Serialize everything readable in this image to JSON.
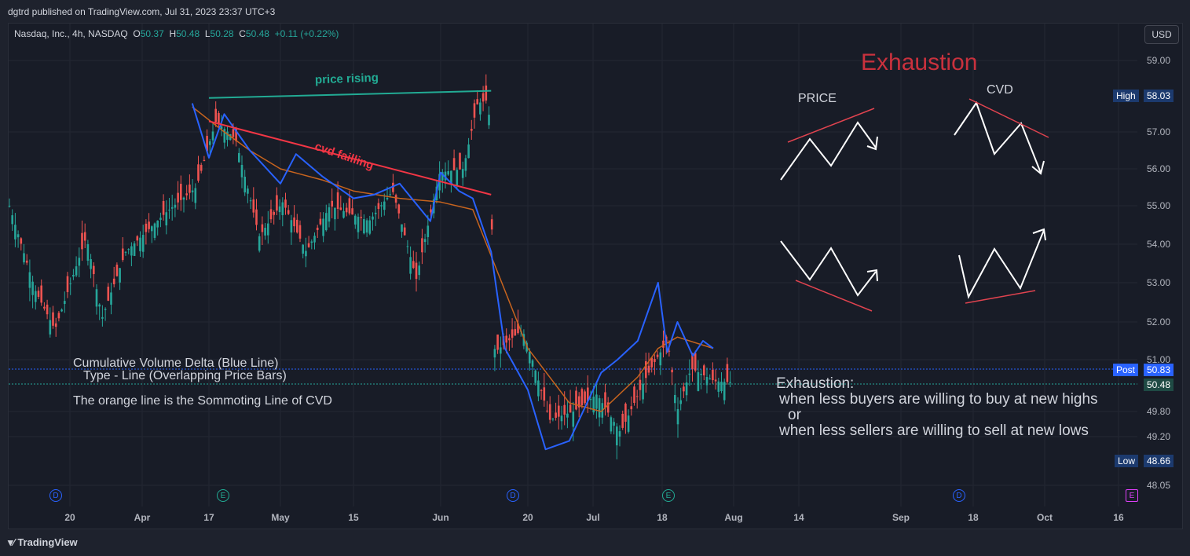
{
  "header": {
    "published": "dgtrd published on TradingView.com, Jul 31, 2023 23:37 UTC+3"
  },
  "symbol_line": {
    "name": "Nasdaq, Inc., 4h, NASDAQ",
    "o_label": "O",
    "o": "50.37",
    "h_label": "H",
    "h": "50.48",
    "l_label": "L",
    "l": "50.28",
    "c_label": "C",
    "c": "50.48",
    "change": "+0.11 (+0.22%)"
  },
  "currency_button": "USD",
  "price_axis": [
    "59.00",
    "57.00",
    "56.00",
    "55.00",
    "54.00",
    "53.00",
    "52.00",
    "51.00",
    "49.80",
    "49.20",
    "48.05"
  ],
  "tags": {
    "high_label": "High",
    "high_value": "58.03",
    "post_label": "Post",
    "post_value": "50.83",
    "last_value": "50.48",
    "low_label": "Low",
    "low_value": "48.66"
  },
  "time_axis": [
    "20",
    "Apr",
    "17",
    "May",
    "15",
    "Jun",
    "20",
    "Jul",
    "18",
    "Aug",
    "14",
    "Sep",
    "18",
    "Oct",
    "16"
  ],
  "events": [
    {
      "letter": "D",
      "kind": "dividend"
    },
    {
      "letter": "E",
      "kind": "earnings"
    },
    {
      "letter": "D",
      "kind": "dividend"
    },
    {
      "letter": "E",
      "kind": "earnings"
    },
    {
      "letter": "D",
      "kind": "dividend"
    },
    {
      "letter": "E",
      "kind": "earnings-upcoming"
    }
  ],
  "annotations": {
    "price_rising": "price rising",
    "cvd_failing": "cvd failling",
    "exhaustion_title": "Exhaustion",
    "price_label": "PRICE",
    "cvd_label": "CVD",
    "cvd_desc_1": "Cumulative Volume Delta (Blue Line)",
    "cvd_desc_2": "Type - Line (Overlapping Price Bars)",
    "orange_desc": "The orange line is the Sommoting Line of CVD",
    "exh_1": "Exhaustion:",
    "exh_2": "when less buyers are willing to buy at new highs",
    "exh_3": "or",
    "exh_4": "when less sellers are willing to sell at new lows"
  },
  "footer": {
    "brand": "TradingView"
  },
  "colors": {
    "up": "#26a69a",
    "down": "#ef5350",
    "cvd": "#2962ff",
    "smooth": "#c8641e",
    "red_annotation": "#f23645",
    "green_annotation": "#22ab94",
    "exhaustion_title": "#c9313d"
  },
  "chart_data": {
    "type": "line",
    "title": "",
    "series": [
      {
        "name": "Cumulative Volume Delta (Blue Line)",
        "x": [
          "Apr 13",
          "Apr 17",
          "Apr 20",
          "Apr 25",
          "May 1",
          "May 4",
          "May 9",
          "May 15",
          "May 19",
          "May 24",
          "May 30",
          "Jun 1",
          "Jun 5",
          "Jun 8",
          "Jun 12",
          "Jun 15",
          "Jun 20",
          "Jun 23",
          "Jun 27",
          "Jul 3",
          "Jul 7",
          "Jul 12",
          "Jul 17",
          "Jul 19",
          "Jul 21",
          "Jul 24",
          "Jul 26",
          "Jul 28"
        ],
        "values": [
          57.8,
          56.3,
          57.5,
          56.5,
          55.6,
          56.4,
          55.8,
          55.2,
          55.3,
          55.6,
          54.6,
          55.9,
          55.4,
          55.2,
          53.8,
          51.3,
          50.3,
          48.9,
          49.1,
          50.7,
          51.0,
          51.5,
          53.0,
          51.2,
          52.0,
          51.1,
          51.5,
          51.3
        ]
      },
      {
        "name": "The orange line is the Sommoting Line of CVD",
        "x": [
          "Apr 13",
          "Apr 20",
          "Apr 25",
          "May 1",
          "May 9",
          "May 15",
          "May 24",
          "Jun 1",
          "Jun 8",
          "Jun 15",
          "Jun 20",
          "Jun 27",
          "Jul 3",
          "Jul 12",
          "Jul 17",
          "Jul 21",
          "Jul 28"
        ],
        "values": [
          57.7,
          57.0,
          56.5,
          56.0,
          55.7,
          55.4,
          55.2,
          55.1,
          54.9,
          52.8,
          51.3,
          50.0,
          49.8,
          50.6,
          51.3,
          51.6,
          51.3
        ]
      }
    ],
    "ohlc_series": {
      "name": "Nasdaq, Inc., 4h, NASDAQ",
      "interval": "4h",
      "range": {
        "high": 58.03,
        "low": 48.66
      },
      "last": {
        "o": 50.37,
        "h": 50.48,
        "l": 50.28,
        "c": 50.48
      }
    },
    "ylim": [
      48.05,
      59.0
    ],
    "trendlines": [
      {
        "label": "price rising",
        "from": [
          "Apr 17",
          57.95
        ],
        "to": [
          "Jun 12",
          58.15
        ]
      },
      {
        "label": "cvd failling",
        "from": [
          "Apr 17",
          57.3
        ],
        "to": [
          "Jun 12",
          55.3
        ]
      }
    ],
    "grid": true
  }
}
